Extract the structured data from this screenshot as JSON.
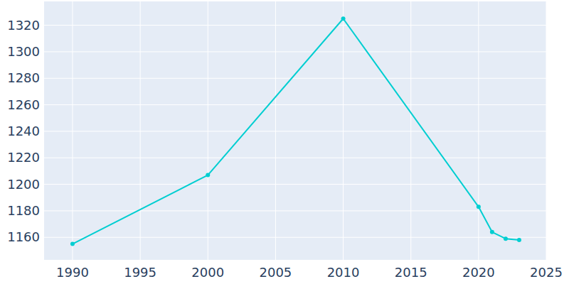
{
  "chart_data": {
    "type": "line",
    "x": [
      1990,
      2000,
      2010,
      2020,
      2021,
      2022,
      2023
    ],
    "values": [
      1155,
      1207,
      1325,
      1183,
      1164,
      1159,
      1158
    ],
    "color": "#00ced1",
    "marker": "circle",
    "xlim": [
      1987.9,
      2025
    ],
    "xticks": [
      1990,
      1995,
      2000,
      2005,
      2010,
      2015,
      2020,
      2025
    ],
    "ylim": [
      1143,
      1338
    ],
    "yticks": [
      1160,
      1180,
      1200,
      1220,
      1240,
      1260,
      1280,
      1300,
      1320
    ],
    "grid": true
  }
}
